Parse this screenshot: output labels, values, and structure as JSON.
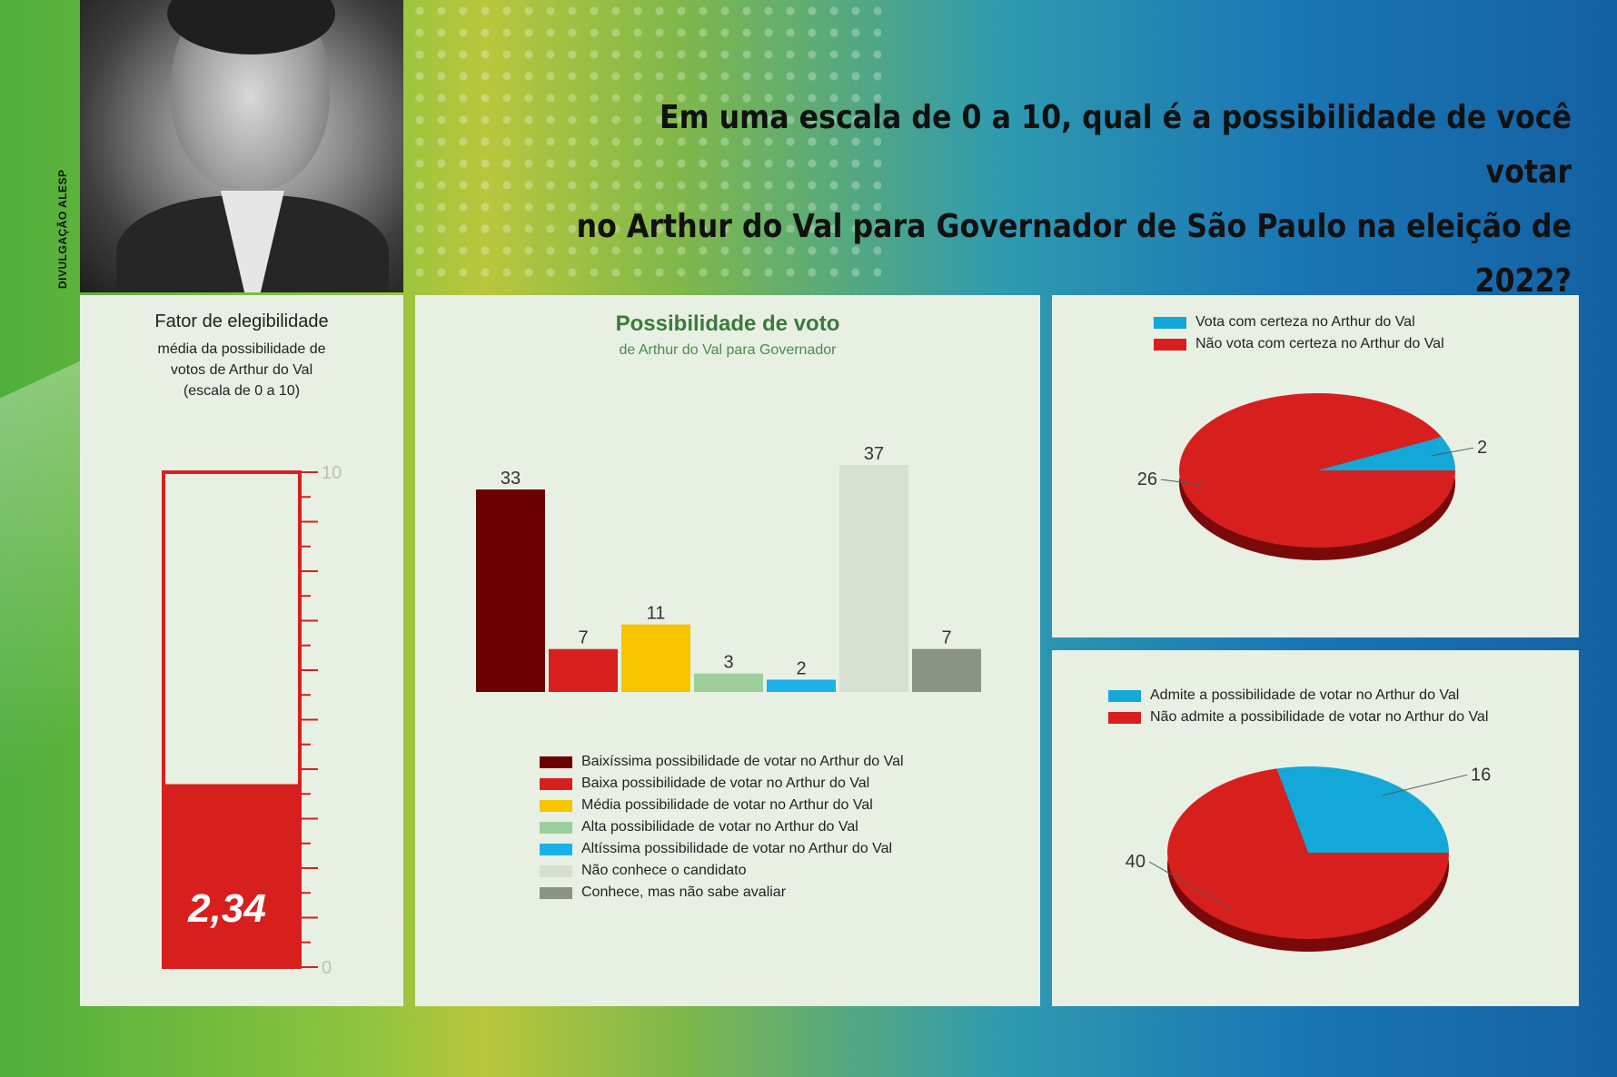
{
  "header": {
    "question_line1": "Em uma escala de 0 a 10, qual é a possibilidade de você votar",
    "question_line2": "no Arthur do Val para Governador de São Paulo na eleição de 2022?",
    "photo_credit": "DIVULGAÇÃO ALESP"
  },
  "colors": {
    "dark_red": "#6b0000",
    "red": "#d7201e",
    "yellow": "#f7c400",
    "light_green": "#9ccf9c",
    "cyan": "#1ab2e8",
    "pale": "#d7dfd3",
    "gray": "#8a9484",
    "pie_blue": "#13a8d8",
    "pie_red": "#d7201e",
    "pie_shadow": "#7a0a0a"
  },
  "eligibility": {
    "title": "Fator de elegibilidade",
    "sub_lines": [
      "média da possibilidade de",
      "votos de Arthur do Val",
      "(escala de 0 a 10)"
    ],
    "value_label": "2,34",
    "scale_max_label": "10",
    "scale_min_label": "0"
  },
  "chart_data": [
    {
      "type": "thermometer",
      "title": "Fator de elegibilidade",
      "value": 2.34,
      "range": [
        0,
        10
      ]
    },
    {
      "type": "bar",
      "title": "Possibilidade de voto",
      "subtitle": "de Arthur do Val para Governador",
      "categories": [
        "Baixíssima possibilidade de votar no Arthur do Val",
        "Baixa possibilidade de votar no Arthur do Val",
        "Média possibilidade de votar no Arthur do Val",
        "Alta possibilidade de votar no Arthur do Val",
        "Altíssima possibilidade de votar no Arthur do Val",
        "Não conhece o candidato",
        "Conhece, mas não sabe avaliar"
      ],
      "values": [
        33,
        7,
        11,
        3,
        2,
        37,
        7
      ],
      "colors": [
        "#6b0000",
        "#d7201e",
        "#f7c400",
        "#9ccf9c",
        "#1ab2e8",
        "#d7dfd3",
        "#8a9484"
      ],
      "ylim": [
        0,
        37
      ],
      "grid": false,
      "legend": "bottom"
    },
    {
      "type": "pie",
      "labels": [
        "Vota com certeza no Arthur do Val",
        "Não vota com certeza no Arthur do Val"
      ],
      "values": [
        2,
        26
      ],
      "colors": [
        "#13a8d8",
        "#d7201e"
      ],
      "legend": "top"
    },
    {
      "type": "pie",
      "labels": [
        "Admite a possibilidade de votar no Arthur do Val",
        "Não admite a possibilidade de votar no Arthur do Val"
      ],
      "values": [
        16,
        40
      ],
      "colors": [
        "#13a8d8",
        "#d7201e"
      ],
      "legend": "top"
    }
  ]
}
